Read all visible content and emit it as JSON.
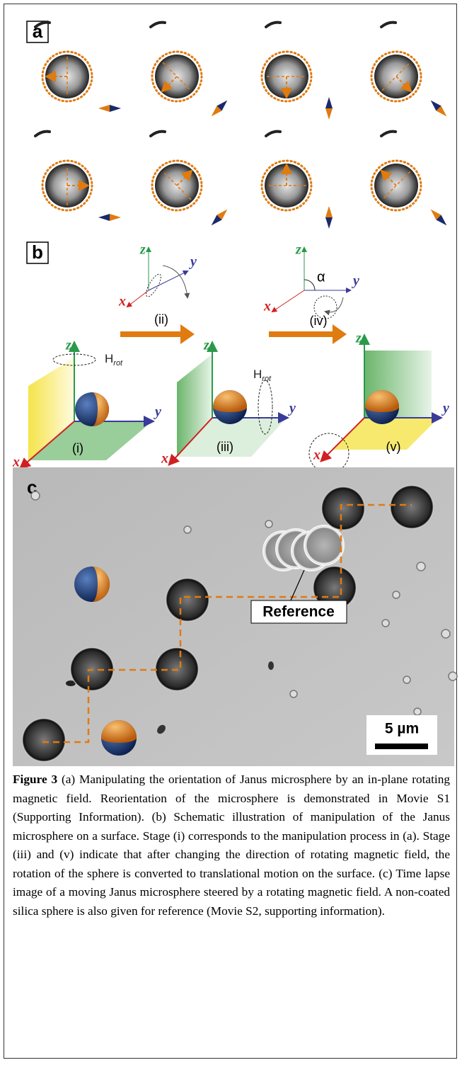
{
  "figure": {
    "panel_a": {
      "label": "a"
    },
    "panel_b": {
      "label": "b",
      "stages": [
        "(i)",
        "(ii)",
        "(iii)",
        "(iv)",
        "(v)"
      ],
      "axes": {
        "x": "x",
        "y": "y",
        "z": "z"
      },
      "field": {
        "main": "H",
        "sub": "rot"
      },
      "angle": "α"
    },
    "panel_c": {
      "label": "c",
      "reference": "Reference",
      "scale_bar": "5 µm"
    },
    "caption": {
      "label": "Figure 3",
      "text": " (a) Manipulating the orientation of Janus microsphere by an in-plane rotating magnetic field. Reorientation of the microsphere is demonstrated in Movie S1 (Supporting Information). (b) Schematic illustration of manipulation of the Janus microsphere on a surface. Stage (i) corresponds to the manipulation process in (a). Stage (iii) and (v) indicate that after changing the direction of rotating magnetic field, the rotation of the sphere is converted to translational motion on the surface. (c) Time lapse image of a moving Janus microsphere steered by a rotating magnetic field. A non-coated silica sphere is also given for reference (Movie S2, supporting information)."
    }
  }
}
